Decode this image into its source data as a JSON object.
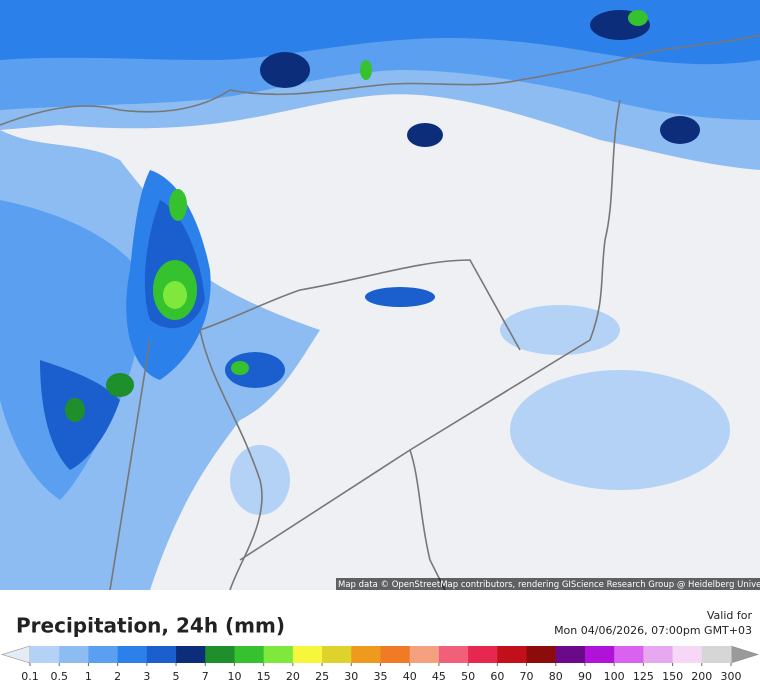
{
  "map": {
    "attribution": "Map data © OpenStreetMap contributors, rendering GIScience Research Group @ Heidelberg University"
  },
  "legend": {
    "title": "Precipitation, 24h (mm)",
    "valid_label": "Valid for",
    "valid_time": "Mon 04/06/2026, 07:00pm GMT+03",
    "ticks": [
      0.1,
      0.5,
      1,
      2,
      3,
      5,
      7,
      10,
      15,
      20,
      25,
      30,
      35,
      40,
      45,
      50,
      60,
      70,
      80,
      90,
      100,
      125,
      150,
      200,
      300
    ],
    "colors": [
      "#b4d2f5",
      "#8cbcf2",
      "#5b9ff0",
      "#2c80ea",
      "#1b5fcf",
      "#0c2e7a",
      "#1e8f2a",
      "#36c12e",
      "#7fe83c",
      "#f6f63c",
      "#e0d22c",
      "#ee9a1e",
      "#f07b24",
      "#f5a07e",
      "#f0607a",
      "#e6284e",
      "#c2101a",
      "#8c0c0c",
      "#6a0a8a",
      "#b012d8",
      "#d962f0",
      "#e8a8f0",
      "#f6d8f6",
      "#d6d6d6"
    ],
    "under_color": "#e4ecf6",
    "over_color": "#9a9a9a"
  }
}
